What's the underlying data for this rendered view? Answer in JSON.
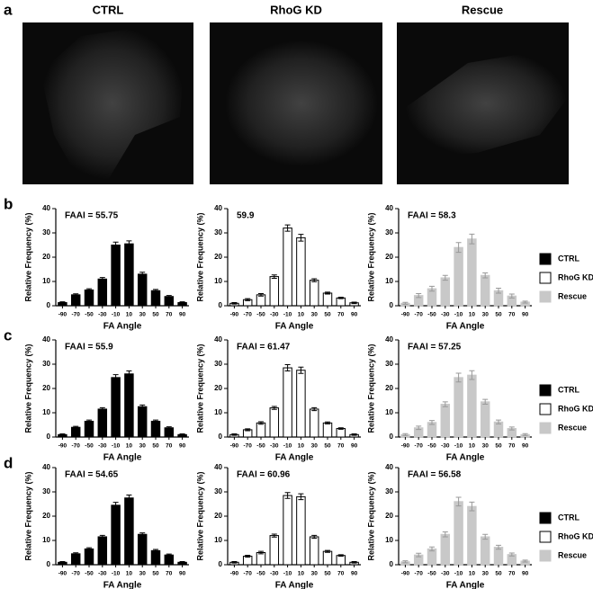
{
  "panels": [
    "a",
    "b",
    "c",
    "d"
  ],
  "images": [
    {
      "title": "CTRL"
    },
    {
      "title": "RhoG KD"
    },
    {
      "title": "Rescue"
    }
  ],
  "legends": [
    [
      {
        "label": "CTRL",
        "color": "#000000",
        "edgecolor": "#000000"
      },
      {
        "label": "RhoG KD",
        "color": "#ffffff",
        "edgecolor": "#000000"
      },
      {
        "label": "Rescue",
        "color": "#c8c8c8",
        "edgecolor": "#c8c8c8"
      }
    ],
    [
      {
        "label": "CTRL",
        "color": "#000000",
        "edgecolor": "#000000"
      },
      {
        "label": "RhoG KD",
        "color": "#ffffff",
        "edgecolor": "#000000"
      },
      {
        "label": "Rescue",
        "color": "#c8c8c8",
        "edgecolor": "#c8c8c8"
      }
    ],
    [
      {
        "label": "CTRL",
        "color": "#000000",
        "edgecolor": "#000000"
      },
      {
        "label": "RhoG KD",
        "color": "#ffffff",
        "edgecolor": "#000000"
      },
      {
        "label": "Rescue",
        "color": "#c8c8c8",
        "edgecolor": "#c8c8c8"
      }
    ]
  ],
  "chart_data": [
    {
      "type": "bar",
      "title": "FAAI = 55.75",
      "xlabel": "FA Angle",
      "ylabel": "Relative Frequency (%)",
      "categories": [
        -90,
        -70,
        -50,
        -30,
        -10,
        10,
        30,
        50,
        70,
        90
      ],
      "values": [
        1.3,
        4.5,
        6.5,
        11,
        25,
        25.5,
        13,
        6.2,
        3.8,
        1.3
      ],
      "errors": [
        0.3,
        0.4,
        0.5,
        0.6,
        1.2,
        1.2,
        0.8,
        0.5,
        0.4,
        0.3
      ],
      "color": "#000000",
      "edgecolor": "#000000",
      "errorcolor": "#000000",
      "ylim": [
        0,
        40
      ],
      "yticks": [
        0,
        10,
        20,
        30,
        40
      ]
    },
    {
      "type": "bar",
      "title": "59.9",
      "xlabel": "FA Angle",
      "ylabel": "Relative Frequency (%)",
      "categories": [
        -90,
        -70,
        -50,
        -30,
        -10,
        10,
        30,
        50,
        70,
        90
      ],
      "values": [
        1,
        2.5,
        4.5,
        12,
        32,
        28,
        10.5,
        5.2,
        3.2,
        1.2
      ],
      "errors": [
        0.3,
        0.4,
        0.5,
        0.7,
        1.3,
        1.4,
        0.6,
        0.4,
        0.3,
        0.3
      ],
      "color": "#ffffff",
      "edgecolor": "#000000",
      "errorcolor": "#000000",
      "ylim": [
        0,
        40
      ],
      "yticks": [
        0,
        10,
        20,
        30,
        40
      ]
    },
    {
      "type": "bar",
      "title": "FAAI = 58.3",
      "xlabel": "FA Angle",
      "ylabel": "Relative Frequency (%)",
      "categories": [
        -90,
        -70,
        -50,
        -30,
        -10,
        10,
        30,
        50,
        70,
        90
      ],
      "values": [
        1,
        4.2,
        7,
        11.5,
        24,
        27.5,
        12.5,
        6.2,
        4,
        1.5
      ],
      "errors": [
        0.4,
        0.8,
        1,
        1,
        2,
        2,
        1,
        1,
        0.8,
        0.4
      ],
      "color": "#c8c8c8",
      "edgecolor": "#c8c8c8",
      "errorcolor": "#999999",
      "ylim": [
        0,
        40
      ],
      "yticks": [
        0,
        10,
        20,
        30,
        40
      ]
    },
    {
      "type": "bar",
      "title": "FAAI = 55.9",
      "xlabel": "FA Angle",
      "ylabel": "Relative Frequency (%)",
      "categories": [
        -90,
        -70,
        -50,
        -30,
        -10,
        10,
        30,
        50,
        70,
        90
      ],
      "values": [
        1,
        4,
        6.5,
        11.5,
        24.5,
        26,
        12.5,
        6.5,
        3.8,
        1
      ],
      "errors": [
        0.3,
        0.4,
        0.5,
        0.6,
        1.2,
        1.2,
        0.7,
        0.5,
        0.4,
        0.3
      ],
      "color": "#000000",
      "edgecolor": "#000000",
      "errorcolor": "#000000",
      "ylim": [
        0,
        40
      ],
      "yticks": [
        0,
        10,
        20,
        30,
        40
      ]
    },
    {
      "type": "bar",
      "title": "FAAI = 61.47",
      "xlabel": "FA Angle",
      "ylabel": "Relative Frequency (%)",
      "categories": [
        -90,
        -70,
        -50,
        -30,
        -10,
        10,
        30,
        50,
        70,
        90
      ],
      "values": [
        1,
        3,
        5.8,
        12,
        28.5,
        27.5,
        11.5,
        5.8,
        3.5,
        1
      ],
      "errors": [
        0.3,
        0.4,
        0.5,
        0.6,
        1.3,
        1.3,
        0.6,
        0.4,
        0.3,
        0.3
      ],
      "color": "#ffffff",
      "edgecolor": "#000000",
      "errorcolor": "#000000",
      "ylim": [
        0,
        40
      ],
      "yticks": [
        0,
        10,
        20,
        30,
        40
      ]
    },
    {
      "type": "bar",
      "title": "FAAI = 57.25",
      "xlabel": "FA Angle",
      "ylabel": "Relative Frequency (%)",
      "categories": [
        -90,
        -70,
        -50,
        -30,
        -10,
        10,
        30,
        50,
        70,
        90
      ],
      "values": [
        1,
        3.8,
        6,
        13.5,
        24.5,
        25.5,
        14.5,
        6.2,
        3.5,
        1
      ],
      "errors": [
        0.4,
        0.7,
        0.8,
        1,
        1.8,
        1.8,
        1,
        0.8,
        0.6,
        0.4
      ],
      "color": "#c8c8c8",
      "edgecolor": "#c8c8c8",
      "errorcolor": "#999999",
      "ylim": [
        0,
        40
      ],
      "yticks": [
        0,
        10,
        20,
        30,
        40
      ]
    },
    {
      "type": "bar",
      "title": "FAAI = 54.65",
      "xlabel": "FA Angle",
      "ylabel": "Relative Frequency (%)",
      "categories": [
        -90,
        -70,
        -50,
        -30,
        -10,
        10,
        30,
        50,
        70,
        90
      ],
      "values": [
        1,
        4.5,
        6.5,
        11.5,
        24.5,
        27.5,
        12.5,
        5.8,
        4,
        1
      ],
      "errors": [
        0.3,
        0.4,
        0.5,
        0.6,
        1.2,
        1.2,
        0.6,
        0.5,
        0.4,
        0.3
      ],
      "color": "#000000",
      "edgecolor": "#000000",
      "errorcolor": "#000000",
      "ylim": [
        0,
        40
      ],
      "yticks": [
        0,
        10,
        20,
        30,
        40
      ]
    },
    {
      "type": "bar",
      "title": "FAAI = 60.96",
      "xlabel": "FA Angle",
      "ylabel": "Relative Frequency (%)",
      "categories": [
        -90,
        -70,
        -50,
        -30,
        -10,
        10,
        30,
        50,
        70,
        90
      ],
      "values": [
        1,
        3.5,
        5,
        12,
        28.5,
        28,
        11.5,
        5.5,
        3.8,
        1
      ],
      "errors": [
        0.3,
        0.4,
        0.5,
        0.6,
        1.2,
        1.2,
        0.6,
        0.4,
        0.3,
        0.3
      ],
      "color": "#ffffff",
      "edgecolor": "#000000",
      "errorcolor": "#000000",
      "ylim": [
        0,
        40
      ],
      "yticks": [
        0,
        10,
        20,
        30,
        40
      ]
    },
    {
      "type": "bar",
      "title": "FAAI = 56.58",
      "xlabel": "FA Angle",
      "ylabel": "Relative Frequency (%)",
      "categories": [
        -90,
        -70,
        -50,
        -30,
        -10,
        10,
        30,
        50,
        70,
        90
      ],
      "values": [
        1.2,
        4,
        6.5,
        12.5,
        26,
        24,
        11.5,
        7.2,
        4.2,
        1.5
      ],
      "errors": [
        0.4,
        0.7,
        0.8,
        1,
        1.8,
        1.8,
        1,
        0.8,
        0.6,
        0.4
      ],
      "color": "#c8c8c8",
      "edgecolor": "#c8c8c8",
      "errorcolor": "#999999",
      "ylim": [
        0,
        40
      ],
      "yticks": [
        0,
        10,
        20,
        30,
        40
      ]
    }
  ]
}
